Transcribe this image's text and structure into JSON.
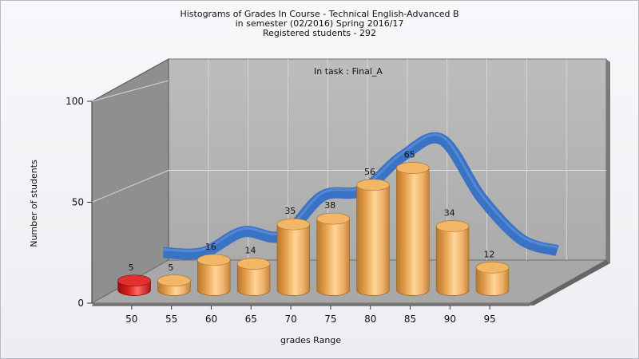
{
  "chart_data": {
    "type": "bar",
    "title_lines": [
      "Histograms of Grades  In Course - Technical English-Advanced B",
      "in semester  (02/2016) Spring 2016/17",
      "Registered students - 292"
    ],
    "annotation": "In task : Final_A",
    "xlabel": "grades Range",
    "ylabel": "Number of students",
    "categories": [
      "50",
      "55",
      "60",
      "65",
      "70",
      "75",
      "80",
      "85",
      "90",
      "95"
    ],
    "x_ticks": [
      "50",
      "55",
      "60",
      "65",
      "70",
      "75",
      "80",
      "85",
      "90",
      "95"
    ],
    "values": [
      5,
      5,
      16,
      14,
      35,
      38,
      56,
      65,
      34,
      12
    ],
    "y_ticks": [
      "0",
      "50",
      "100"
    ],
    "ylim": [
      0,
      100
    ],
    "highlight_index": 0,
    "grid": true,
    "colors": {
      "bar": "#e6a04c",
      "highlight": "#d81b1b",
      "curve": "#3a72c4",
      "wall_back": "#b5b5b5",
      "wall_side": "#8f8f8f",
      "floor": "#a8a8a8"
    }
  }
}
